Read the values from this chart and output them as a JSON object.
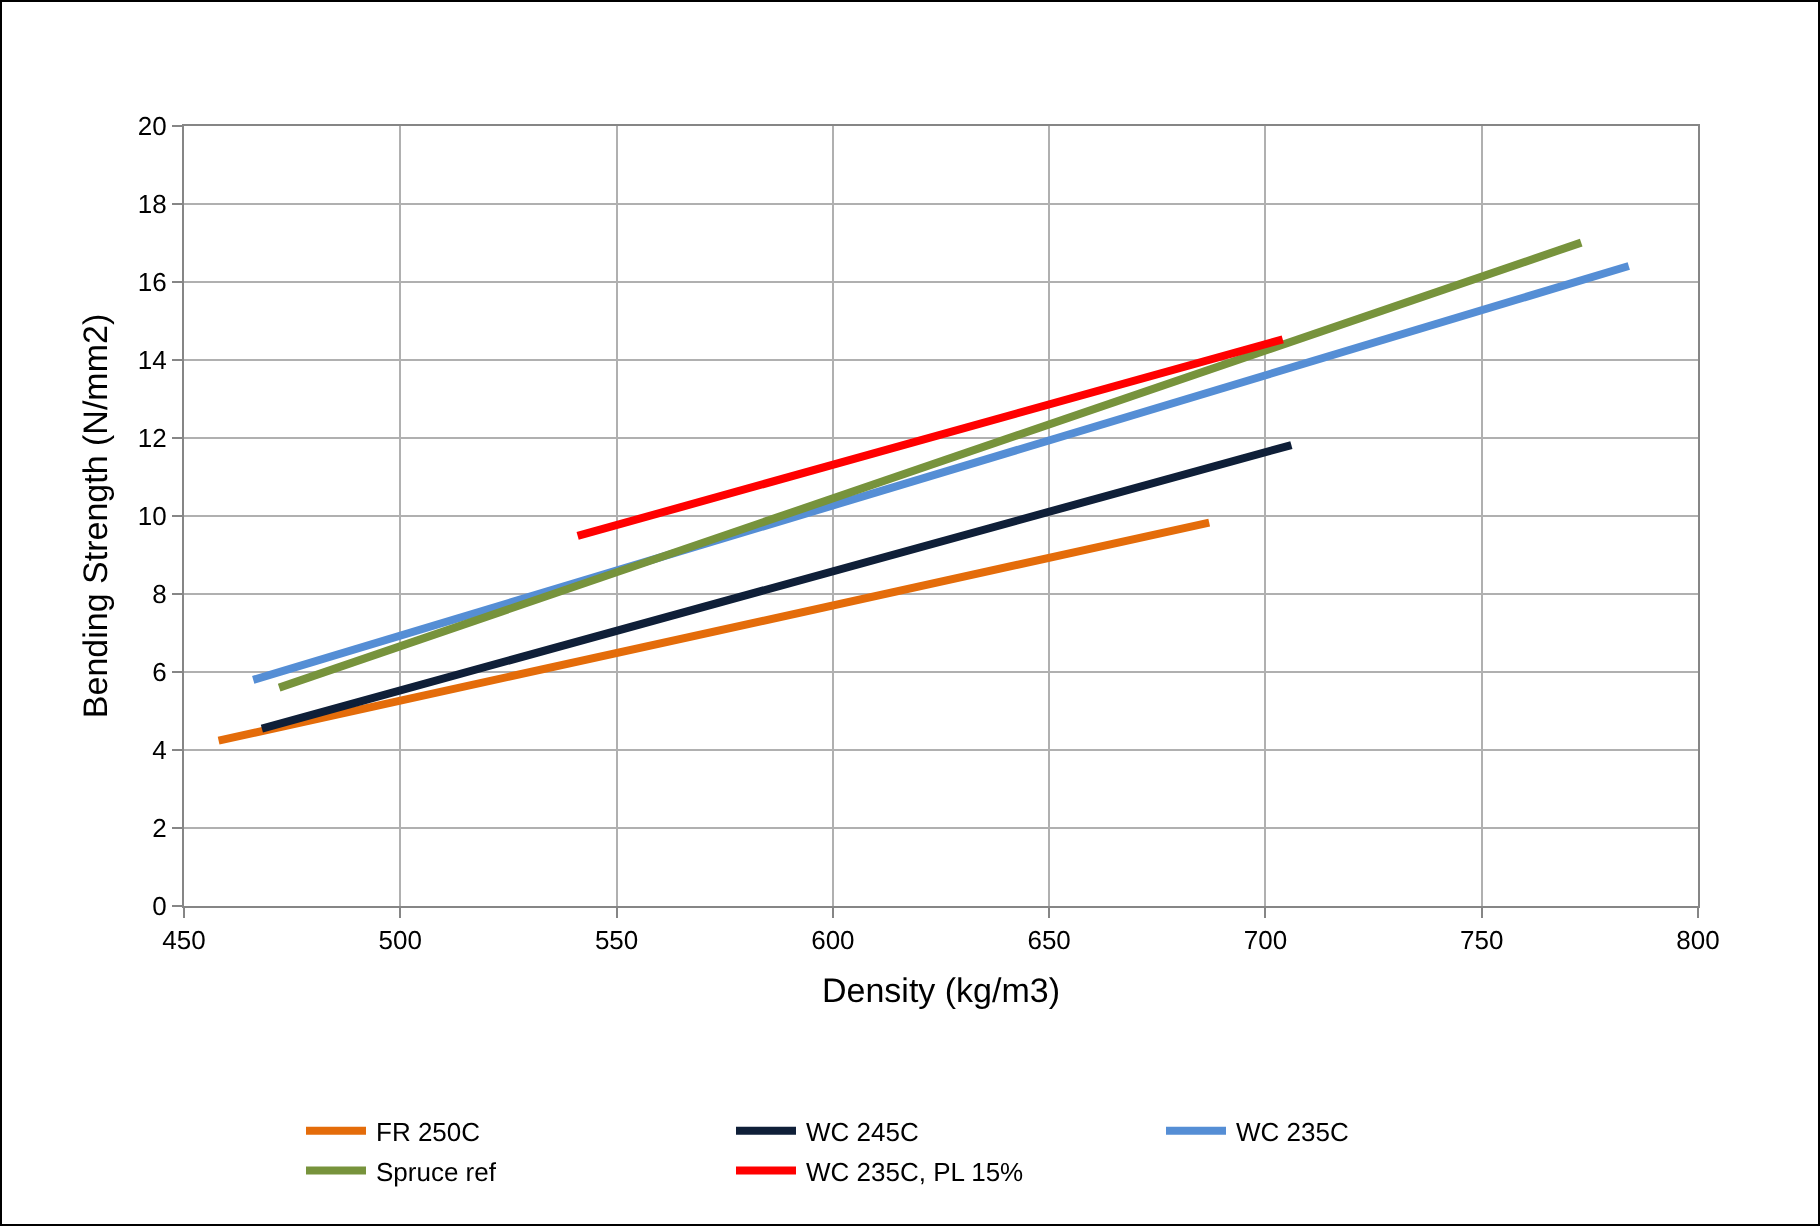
{
  "chart_data": {
    "type": "line",
    "xlabel": "Density (kg/m3)",
    "ylabel": "Bending Strength (N/mm2)",
    "xlim": [
      450,
      800
    ],
    "xticks": [
      450,
      500,
      550,
      600,
      650,
      700,
      750,
      800
    ],
    "ylim": [
      0,
      20
    ],
    "yticks": [
      0,
      2,
      4,
      6,
      8,
      10,
      12,
      14,
      16,
      18,
      20
    ],
    "grid": true,
    "legend": "bottom",
    "marker": "none",
    "line_style": "solid",
    "series": [
      {
        "name": "FR 250C",
        "color": "#e46c0a",
        "x": [
          458,
          687
        ],
        "values": [
          4.24,
          9.83
        ]
      },
      {
        "name": "WC 245C",
        "color": "#0f1f38",
        "x": [
          468,
          706
        ],
        "values": [
          4.55,
          11.82
        ]
      },
      {
        "name": "WC 235C",
        "color": "#558ed5",
        "x": [
          466,
          784
        ],
        "values": [
          5.8,
          16.41
        ]
      },
      {
        "name": "Spruce ref",
        "color": "#77933c",
        "x": [
          472,
          773
        ],
        "values": [
          5.6,
          17.01
        ]
      },
      {
        "name": "WC 235C, PL 15%",
        "color": "#ff0000",
        "x": [
          541,
          704
        ],
        "values": [
          9.49,
          14.53
        ]
      }
    ]
  }
}
